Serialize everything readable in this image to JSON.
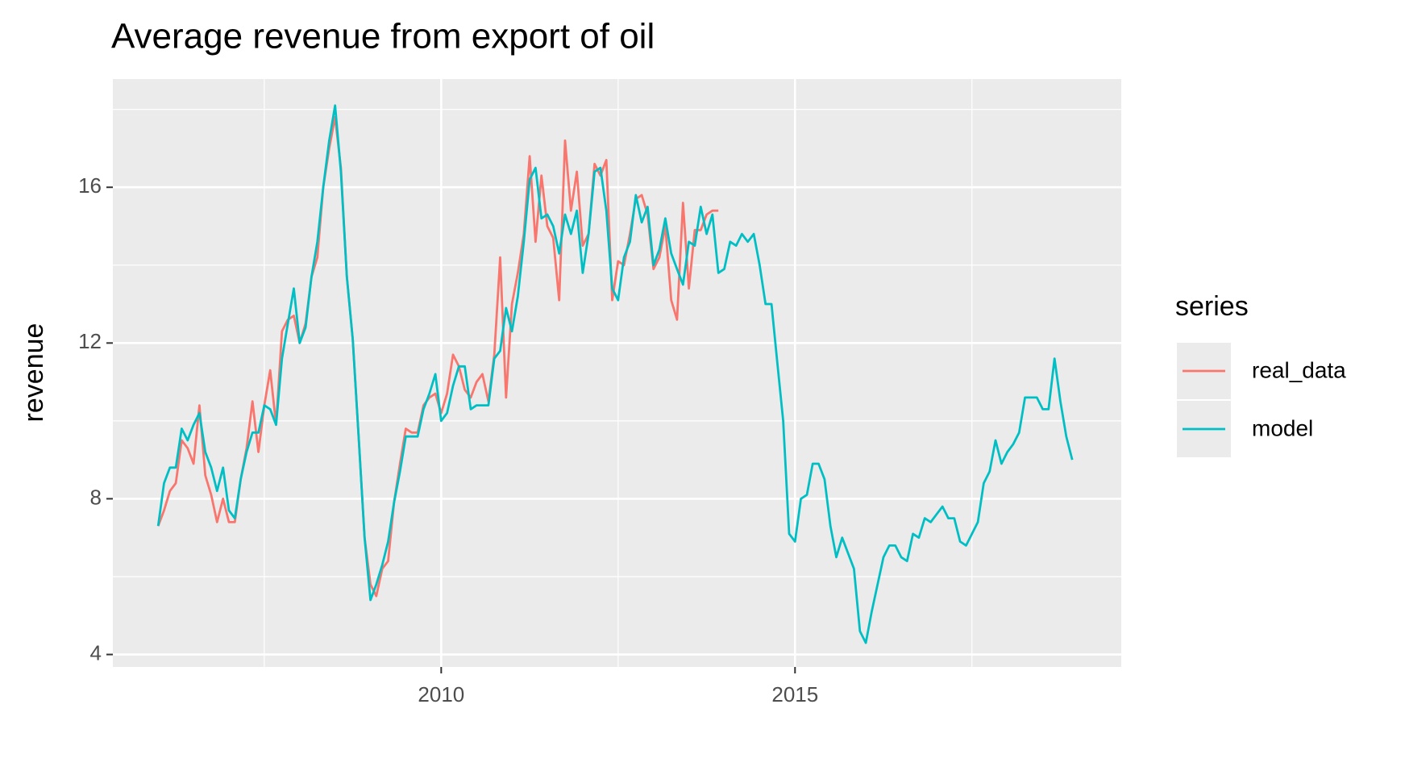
{
  "chart_data": {
    "type": "line",
    "title": "Average revenue from export of oil",
    "y_label": "revenue",
    "legend_title": "series",
    "x": [
      2006,
      2006.083,
      2006.167,
      2006.25,
      2006.333,
      2006.417,
      2006.5,
      2006.583,
      2006.667,
      2006.75,
      2006.833,
      2006.917,
      2007,
      2007.083,
      2007.167,
      2007.25,
      2007.333,
      2007.417,
      2007.5,
      2007.583,
      2007.667,
      2007.75,
      2007.833,
      2007.917,
      2008,
      2008.083,
      2008.167,
      2008.25,
      2008.333,
      2008.417,
      2008.5,
      2008.583,
      2008.667,
      2008.75,
      2008.833,
      2008.917,
      2009,
      2009.083,
      2009.167,
      2009.25,
      2009.333,
      2009.417,
      2009.5,
      2009.583,
      2009.667,
      2009.75,
      2009.833,
      2009.917,
      2010,
      2010.083,
      2010.167,
      2010.25,
      2010.333,
      2010.417,
      2010.5,
      2010.583,
      2010.667,
      2010.75,
      2010.833,
      2010.917,
      2011,
      2011.083,
      2011.167,
      2011.25,
      2011.333,
      2011.417,
      2011.5,
      2011.583,
      2011.667,
      2011.75,
      2011.833,
      2011.917,
      2012,
      2012.083,
      2012.167,
      2012.25,
      2012.333,
      2012.417,
      2012.5,
      2012.583,
      2012.667,
      2012.75,
      2012.833,
      2012.917,
      2013,
      2013.083,
      2013.167,
      2013.25,
      2013.333,
      2013.417,
      2013.5,
      2013.583,
      2013.667,
      2013.75,
      2013.833,
      2013.917,
      2014,
      2014.083,
      2014.167,
      2014.25,
      2014.333,
      2014.417,
      2014.5,
      2014.583,
      2014.667,
      2014.75,
      2014.833,
      2014.917,
      2015,
      2015.083,
      2015.167,
      2015.25,
      2015.333,
      2015.417,
      2015.5,
      2015.583,
      2015.667,
      2015.75,
      2015.833,
      2015.917,
      2016,
      2016.083,
      2016.167,
      2016.25,
      2016.333,
      2016.417,
      2016.5,
      2016.583,
      2016.667,
      2016.75,
      2016.833,
      2016.917,
      2017,
      2017.083,
      2017.167,
      2017.25,
      2017.333,
      2017.417,
      2017.5,
      2017.583,
      2017.667,
      2017.75,
      2017.833,
      2017.917,
      2018,
      2018.083,
      2018.167,
      2018.25,
      2018.333,
      2018.417,
      2018.5,
      2018.583,
      2018.667,
      2018.75,
      2018.833,
      2018.917
    ],
    "series": [
      {
        "name": "real_data",
        "color": "#f8766d",
        "values": [
          7.3,
          7.7,
          8.2,
          8.4,
          9.5,
          9.3,
          8.9,
          10.4,
          8.6,
          8.1,
          7.4,
          8.0,
          7.4,
          7.4,
          8.5,
          9.3,
          10.5,
          9.2,
          10.4,
          11.3,
          9.9,
          12.3,
          12.6,
          12.7,
          12.0,
          12.5,
          13.7,
          14.2,
          16.0,
          17.0,
          17.8,
          16.5,
          13.7,
          12.1,
          9.6,
          7.0,
          5.8,
          5.5,
          6.2,
          6.4,
          7.9,
          8.9,
          9.8,
          9.7,
          9.7,
          10.4,
          10.6,
          10.7,
          10.2,
          10.7,
          11.7,
          11.4,
          10.8,
          10.6,
          11.0,
          11.2,
          10.5,
          11.7,
          14.2,
          10.6,
          13.0,
          13.8,
          14.8,
          16.8,
          14.6,
          16.3,
          15.0,
          14.7,
          13.1,
          17.2,
          15.4,
          16.4,
          14.5,
          14.8,
          16.6,
          16.3,
          16.7,
          13.1,
          14.1,
          14.0,
          14.8,
          15.7,
          15.8,
          15.3,
          13.9,
          14.2,
          15.0,
          13.1,
          12.6,
          15.6,
          13.4,
          14.9,
          14.9,
          15.3,
          15.4,
          15.4,
          null,
          null,
          null,
          null,
          null,
          null,
          null,
          null,
          null,
          null,
          null,
          null,
          null,
          null,
          null,
          null,
          null,
          null,
          null,
          null,
          null,
          null,
          null,
          null,
          null,
          null,
          null,
          null,
          null,
          null,
          null,
          null,
          null,
          null,
          null,
          null,
          null,
          null,
          null,
          null,
          null,
          null,
          null,
          null,
          null,
          null,
          null,
          null,
          null,
          null,
          null,
          null,
          null,
          null,
          null,
          null,
          null,
          null,
          null,
          null
        ]
      },
      {
        "name": "model",
        "color": "#00bfc4",
        "values": [
          7.3,
          8.4,
          8.8,
          8.8,
          9.8,
          9.5,
          9.9,
          10.2,
          9.2,
          8.8,
          8.2,
          8.8,
          7.7,
          7.5,
          8.5,
          9.2,
          9.7,
          9.7,
          10.4,
          10.3,
          9.9,
          11.6,
          12.5,
          13.4,
          12.0,
          12.4,
          13.7,
          14.6,
          16.0,
          17.2,
          18.1,
          16.4,
          13.7,
          12.1,
          9.6,
          7.0,
          5.4,
          5.8,
          6.3,
          6.9,
          7.9,
          8.7,
          9.6,
          9.6,
          9.6,
          10.3,
          10.7,
          11.2,
          10.0,
          10.2,
          10.9,
          11.4,
          11.4,
          10.3,
          10.4,
          10.4,
          10.4,
          11.6,
          11.8,
          12.9,
          12.3,
          13.2,
          14.6,
          16.2,
          16.5,
          15.2,
          15.3,
          15.0,
          14.3,
          15.3,
          14.8,
          15.4,
          13.8,
          14.8,
          16.4,
          16.5,
          15.4,
          13.4,
          13.1,
          14.2,
          14.6,
          15.8,
          15.1,
          15.5,
          14.0,
          14.4,
          15.2,
          14.3,
          13.9,
          13.5,
          14.6,
          14.5,
          15.5,
          14.8,
          15.3,
          13.8,
          13.9,
          14.6,
          14.5,
          14.8,
          14.6,
          14.8,
          14.0,
          13.0,
          13.0,
          11.5,
          10.0,
          7.1,
          6.9,
          8.0,
          8.1,
          8.9,
          8.9,
          8.5,
          7.3,
          6.5,
          7.0,
          6.6,
          6.2,
          4.6,
          4.3,
          5.1,
          5.8,
          6.5,
          6.8,
          6.8,
          6.5,
          6.4,
          7.1,
          7.0,
          7.5,
          7.4,
          7.6,
          7.8,
          7.5,
          7.5,
          6.9,
          6.8,
          7.1,
          7.4,
          8.4,
          8.7,
          9.5,
          8.9,
          9.2,
          9.4,
          9.7,
          10.6,
          10.6,
          10.6,
          10.3,
          10.3,
          11.6,
          10.5,
          9.6,
          9.0
        ]
      }
    ],
    "xlim": [
      2005.36,
      2019.61
    ],
    "xticks": [
      2010,
      2015
    ],
    "ylim": [
      3.68,
      18.78
    ],
    "yticks": [
      4,
      8,
      12,
      16
    ],
    "grid": true
  }
}
